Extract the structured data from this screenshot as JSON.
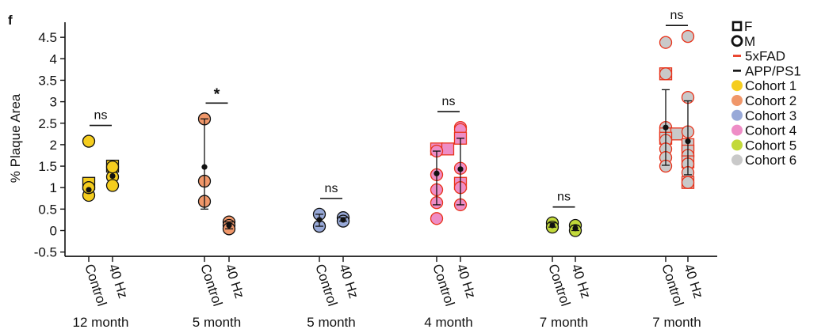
{
  "panel_label": "f",
  "chart_data": {
    "type": "scatter",
    "title": "",
    "ylabel": "% Plaque Area",
    "xlabel": "",
    "ylim": [
      -0.6,
      4.85
    ],
    "yticks": [
      -0.5,
      0,
      0.5,
      1,
      1.5,
      2,
      2.5,
      3,
      3.5,
      4,
      4.5
    ],
    "ytick_labels": [
      "-0.5",
      "0",
      "0.5",
      "1",
      "1.5",
      "2",
      "2.5",
      "3",
      "3.5",
      "4",
      "4.5"
    ],
    "groups": [
      {
        "label": "12 month",
        "cohort": "Cohort 1",
        "significance": "ns",
        "conditions": [
          {
            "label": "Control",
            "mean": 0.95,
            "err_low": 0.95,
            "err_high": 0.95,
            "points": [
              {
                "v": 1.1,
                "shape": "square"
              },
              {
                "v": 0.82,
                "shape": "circle"
              },
              {
                "v": 1.0,
                "shape": "circle"
              },
              {
                "v": 2.08,
                "shape": "circle"
              }
            ]
          },
          {
            "label": "40 Hz",
            "mean": 1.27,
            "err_low": 1.27,
            "err_high": 1.27,
            "points": [
              {
                "v": 1.5,
                "shape": "square"
              },
              {
                "v": 1.25,
                "shape": "circle"
              },
              {
                "v": 1.05,
                "shape": "circle"
              },
              {
                "v": 1.48,
                "shape": "circle"
              }
            ]
          }
        ]
      },
      {
        "label": "5 month",
        "cohort": "Cohort 2",
        "significance": "*",
        "conditions": [
          {
            "label": "Control",
            "mean": 1.48,
            "err_low": 0.5,
            "err_high": 2.6,
            "points": [
              {
                "v": 2.6,
                "shape": "circle"
              },
              {
                "v": 1.15,
                "shape": "circle"
              },
              {
                "v": 0.68,
                "shape": "circle"
              }
            ]
          },
          {
            "label": "40 Hz",
            "mean": 0.12,
            "err_low": 0.04,
            "err_high": 0.2,
            "points": [
              {
                "v": 0.2,
                "shape": "circle"
              },
              {
                "v": 0.12,
                "shape": "circle"
              },
              {
                "v": 0.04,
                "shape": "circle"
              }
            ]
          }
        ]
      },
      {
        "label": "5 month",
        "cohort": "Cohort 3",
        "significance": "ns",
        "conditions": [
          {
            "label": "Control",
            "mean": 0.25,
            "err_low": 0.1,
            "err_high": 0.38,
            "points": [
              {
                "v": 0.38,
                "shape": "circle"
              },
              {
                "v": 0.1,
                "shape": "circle"
              }
            ]
          },
          {
            "label": "40 Hz",
            "mean": 0.25,
            "err_low": 0.22,
            "err_high": 0.3,
            "points": [
              {
                "v": 0.3,
                "shape": "circle"
              },
              {
                "v": 0.22,
                "shape": "circle"
              }
            ]
          }
        ]
      },
      {
        "label": "4 month",
        "cohort": "Cohort 4",
        "significance": "ns",
        "conditions": [
          {
            "label": "Control",
            "mean": 1.33,
            "err_low": 0.6,
            "err_high": 1.85,
            "points": [
              {
                "v": 1.9,
                "shape": "square"
              },
              {
                "v": 1.9,
                "shape": "square"
              },
              {
                "v": 1.85,
                "shape": "circle"
              },
              {
                "v": 1.3,
                "shape": "circle"
              },
              {
                "v": 0.95,
                "shape": "circle"
              },
              {
                "v": 0.65,
                "shape": "circle"
              },
              {
                "v": 0.28,
                "shape": "circle"
              }
            ]
          },
          {
            "label": "40 Hz",
            "mean": 1.43,
            "err_low": 0.6,
            "err_high": 2.15,
            "points": [
              {
                "v": 2.4,
                "shape": "circle"
              },
              {
                "v": 2.35,
                "shape": "circle"
              },
              {
                "v": 2.15,
                "shape": "square"
              },
              {
                "v": 1.45,
                "shape": "circle"
              },
              {
                "v": 1.1,
                "shape": "square"
              },
              {
                "v": 1.0,
                "shape": "circle"
              },
              {
                "v": 0.6,
                "shape": "circle"
              }
            ]
          }
        ]
      },
      {
        "label": "7 month",
        "cohort": "Cohort 5",
        "significance": "ns",
        "conditions": [
          {
            "label": "Control",
            "mean": 0.12,
            "err_low": 0.08,
            "err_high": 0.18,
            "points": [
              {
                "v": 0.18,
                "shape": "circle"
              },
              {
                "v": 0.08,
                "shape": "circle"
              }
            ]
          },
          {
            "label": "40 Hz",
            "mean": 0.05,
            "err_low": 0.0,
            "err_high": 0.12,
            "points": [
              {
                "v": 0.12,
                "shape": "circle"
              },
              {
                "v": 0.0,
                "shape": "circle"
              }
            ]
          }
        ]
      },
      {
        "label": "7 month",
        "cohort": "Cohort 6",
        "significance": "ns",
        "conditions": [
          {
            "label": "Control",
            "mean": 2.4,
            "err_low": 1.52,
            "err_high": 3.28,
            "points": [
              {
                "v": 4.38,
                "shape": "circle"
              },
              {
                "v": 3.65,
                "shape": "square"
              },
              {
                "v": 3.65,
                "shape": "circle"
              },
              {
                "v": 2.4,
                "shape": "circle"
              },
              {
                "v": 2.25,
                "shape": "square"
              },
              {
                "v": 2.25,
                "shape": "square"
              },
              {
                "v": 2.15,
                "shape": "square"
              },
              {
                "v": 2.1,
                "shape": "circle"
              },
              {
                "v": 1.9,
                "shape": "circle"
              },
              {
                "v": 1.7,
                "shape": "circle"
              },
              {
                "v": 1.5,
                "shape": "circle"
              }
            ]
          },
          {
            "label": "40 Hz",
            "mean": 2.08,
            "err_low": 1.3,
            "err_high": 3.02,
            "points": [
              {
                "v": 4.52,
                "shape": "circle"
              },
              {
                "v": 3.1,
                "shape": "circle"
              },
              {
                "v": 2.3,
                "shape": "circle"
              },
              {
                "v": 2.0,
                "shape": "square"
              },
              {
                "v": 1.85,
                "shape": "square"
              },
              {
                "v": 1.75,
                "shape": "circle"
              },
              {
                "v": 1.6,
                "shape": "square"
              },
              {
                "v": 1.55,
                "shape": "circle"
              },
              {
                "v": 1.35,
                "shape": "circle"
              },
              {
                "v": 1.12,
                "shape": "square"
              },
              {
                "v": 1.12,
                "shape": "circle"
              }
            ]
          }
        ]
      }
    ],
    "legend": {
      "position": "right",
      "shape_entries": [
        {
          "label": "F",
          "shape": "square"
        },
        {
          "label": "M",
          "shape": "circle"
        }
      ],
      "line_entries": [
        {
          "label": "5xFAD",
          "color": "#e8341c"
        },
        {
          "label": "APP/PS1",
          "color": "#111111"
        }
      ],
      "color_entries": [
        {
          "label": "Cohort 1",
          "color": "#f5cd1e"
        },
        {
          "label": "Cohort 2",
          "color": "#f0976a"
        },
        {
          "label": "Cohort 3",
          "color": "#98a9d8"
        },
        {
          "label": "Cohort 4",
          "color": "#ee8dc6"
        },
        {
          "label": "Cohort 5",
          "color": "#c2d93a"
        },
        {
          "label": "Cohort 6",
          "color": "#c9c9c9"
        }
      ]
    }
  }
}
